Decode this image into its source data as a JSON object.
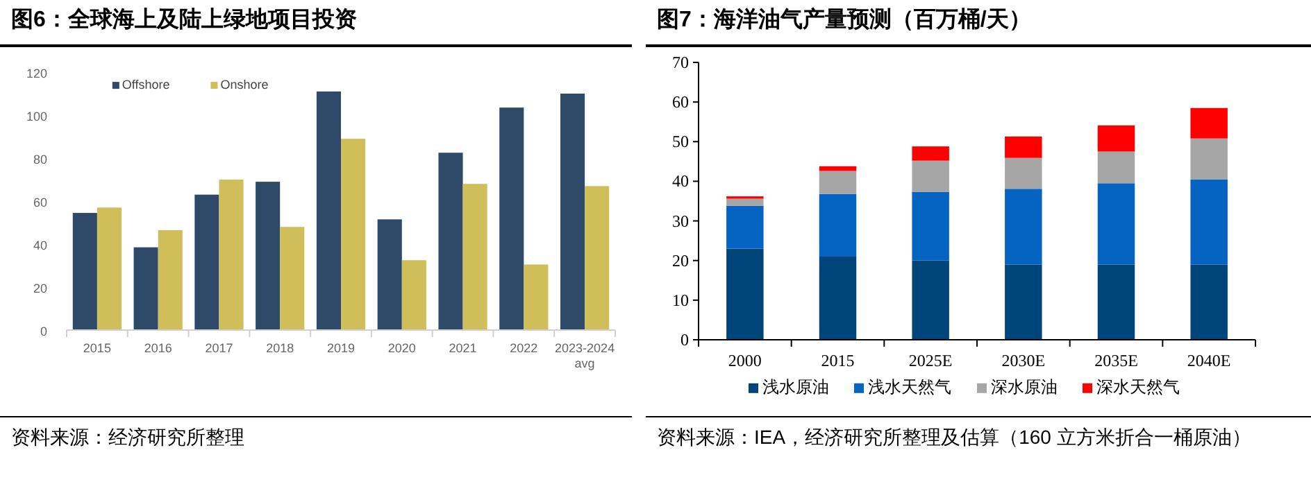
{
  "chart_data": [
    {
      "type": "bar",
      "title": "图6：全球海上及陆上绿地项目投资",
      "categories": [
        "2015",
        "2016",
        "2017",
        "2018",
        "2019",
        "2020",
        "2021",
        "2022",
        "2023-2024 avg"
      ],
      "series": [
        {
          "name": "Offshore",
          "color": "#2e4a68",
          "values": [
            54.5,
            38.5,
            63,
            69,
            111,
            51.5,
            82.5,
            103.5,
            110
          ]
        },
        {
          "name": "Onshore",
          "color": "#cfbe5a",
          "values": [
            57,
            46.5,
            70,
            48,
            89,
            32.5,
            68,
            30.5,
            67
          ]
        }
      ],
      "ylim": [
        0,
        120
      ],
      "yticks": [
        0,
        20,
        40,
        60,
        80,
        100,
        120
      ],
      "legend": "top left",
      "annotations": [
        "资料来源：经济研究所整理"
      ]
    },
    {
      "type": "bar",
      "stacked": true,
      "title": "图7：海洋油气产量预测（百万桶/天）",
      "categories": [
        "2000",
        "2015",
        "2025E",
        "2030E",
        "2035E",
        "2040E"
      ],
      "series": [
        {
          "name": "浅水原油",
          "color": "#00457a",
          "values": [
            23,
            21,
            20,
            19,
            19,
            19
          ]
        },
        {
          "name": "浅水天然气",
          "color": "#0563c1",
          "values": [
            10.8,
            15.8,
            17.3,
            19.1,
            20.5,
            21.5
          ]
        },
        {
          "name": "深水原油",
          "color": "#a6a6a6",
          "values": [
            1.8,
            5.8,
            7.9,
            7.8,
            8,
            10.3
          ]
        },
        {
          "name": "深水天然气",
          "color": "#ff0000",
          "values": [
            0.6,
            1.2,
            3.6,
            5.4,
            6.6,
            7.7
          ]
        }
      ],
      "ylim": [
        0,
        70
      ],
      "yticks": [
        0,
        10,
        20,
        30,
        40,
        50,
        60,
        70
      ],
      "legend": "bottom",
      "annotations": [
        "资料来源：IEA，经济研究所整理及估算（160 立方米折合一桶原油）"
      ]
    }
  ]
}
